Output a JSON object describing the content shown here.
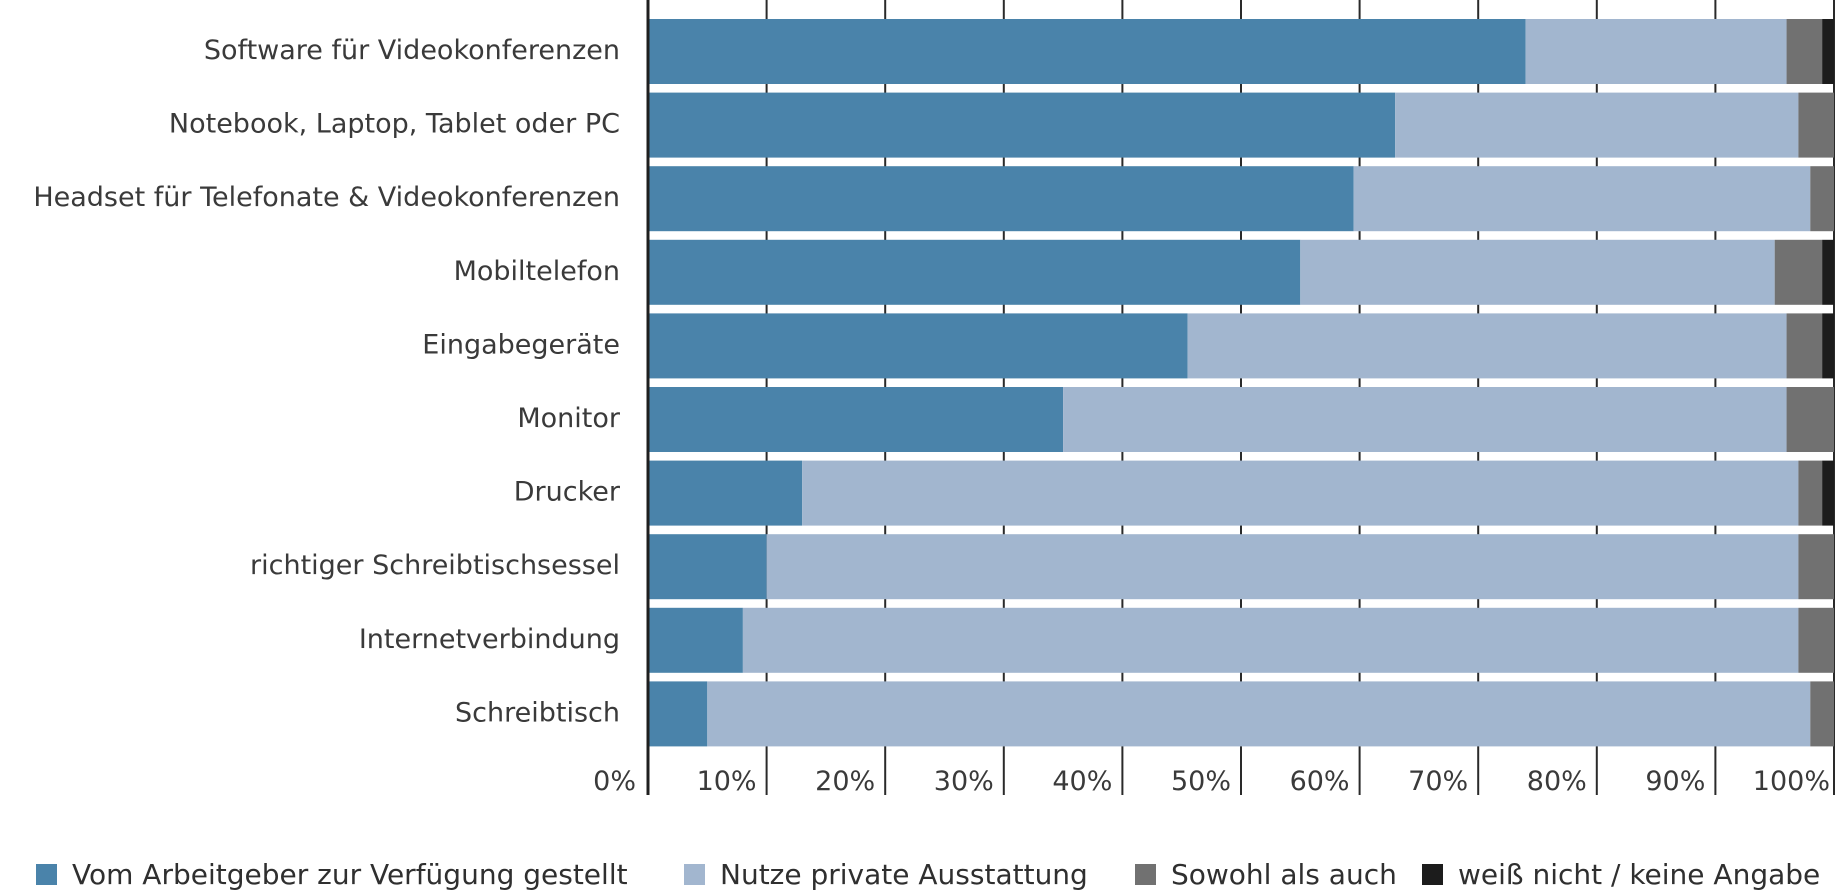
{
  "chart_data": {
    "type": "bar",
    "orientation": "horizontal",
    "stacked": true,
    "title": "",
    "xlabel": "",
    "ylabel": "",
    "xlim": [
      0,
      100
    ],
    "x_ticks": [
      "0%",
      "10%",
      "20%",
      "30%",
      "40%",
      "50%",
      "60%",
      "70%",
      "80%",
      "90%",
      "100%"
    ],
    "grid": "vertical",
    "legend_position": "bottom",
    "categories": [
      "Software für Videokonferenzen",
      "Notebook, Laptop, Tablet oder PC",
      "Headset für Telefonate & Videokonferenzen",
      "Mobiltelefon",
      "Eingabegeräte",
      "Monitor",
      "Drucker",
      "richtiger Schreibtischsessel",
      "Internetverbindung",
      "Schreibtisch"
    ],
    "series": [
      {
        "name": "Vom Arbeitgeber zur Verfügung gestellt",
        "color": "#4a83aa",
        "values": [
          74,
          63,
          59.5,
          55,
          45.5,
          35,
          13,
          10,
          8,
          5
        ]
      },
      {
        "name": "Nutze private Ausstattung",
        "color": "#a2b6cf",
        "values": [
          22,
          34,
          38.5,
          40,
          50.5,
          61,
          84,
          87,
          89,
          93
        ]
      },
      {
        "name": "Sowohl als auch",
        "color": "#717171",
        "values": [
          3,
          3,
          2,
          4,
          3,
          4,
          2,
          3,
          3,
          2
        ]
      },
      {
        "name": "weiß nicht / keine Angabe",
        "color": "#1c1c1c",
        "values": [
          1,
          0,
          0,
          1,
          1,
          0,
          1,
          0,
          0,
          0
        ]
      }
    ]
  }
}
